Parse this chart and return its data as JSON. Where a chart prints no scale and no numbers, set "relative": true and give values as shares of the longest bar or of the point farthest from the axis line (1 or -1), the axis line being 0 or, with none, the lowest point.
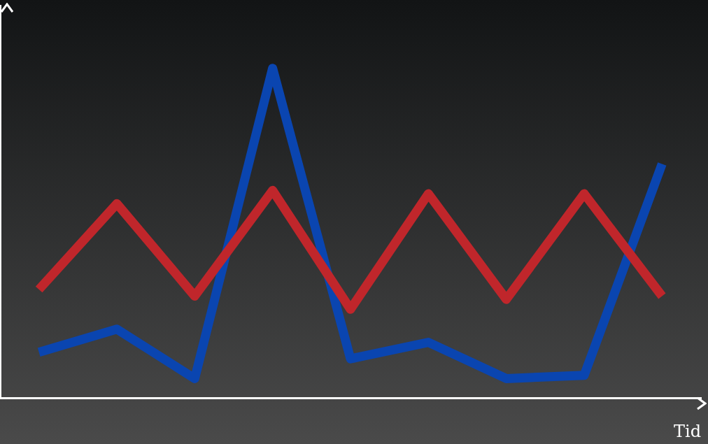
{
  "chart_data": {
    "type": "line",
    "relative": true,
    "xlabel": "Tid",
    "grid": false,
    "legend": false,
    "marker": "none",
    "line_style": "solid",
    "categories": [
      null,
      null,
      null,
      null,
      null,
      null,
      null,
      null,
      null
    ],
    "series": [
      {
        "color": "#c0262b",
        "values": [
          0.33,
          0.59,
          0.31,
          0.63,
          0.27,
          0.62,
          0.3,
          0.62,
          0.31
        ]
      },
      {
        "color": "#0a45b0",
        "values": [
          0.14,
          0.21,
          0.06,
          1,
          0.12,
          0.17,
          0.06,
          0.07,
          0.71
        ]
      }
    ]
  }
}
